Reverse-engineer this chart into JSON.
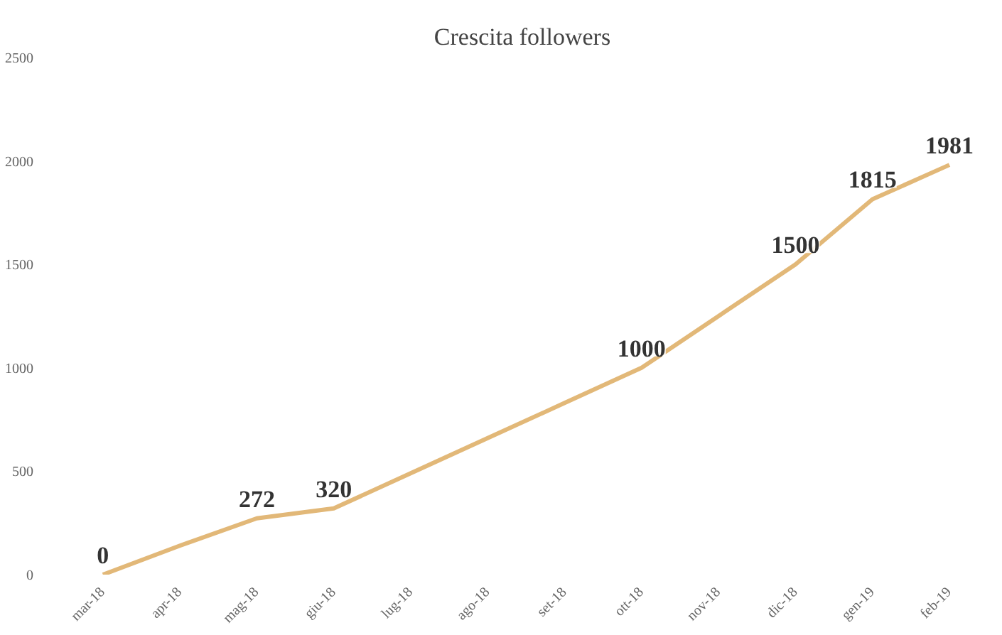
{
  "chart_data": {
    "type": "line",
    "title": "Crescita followers",
    "categories": [
      "mar-18",
      "apr-18",
      "mag-18",
      "giu-18",
      "lug-18",
      "ago-18",
      "set-18",
      "ott-18",
      "nov-18",
      "dic-18",
      "gen-19",
      "feb-19"
    ],
    "series": [
      {
        "color": "#e2b878",
        "values": [
          0,
          140,
          272,
          320,
          490,
          660,
          830,
          1000,
          1250,
          1500,
          1815,
          1981
        ],
        "value_labels": [
          "0",
          null,
          "272",
          "320",
          null,
          null,
          null,
          "1000",
          null,
          "1500",
          "1815",
          "1981"
        ]
      }
    ],
    "ylim": [
      0,
      2500
    ],
    "yticks": [
      0,
      500,
      1000,
      1500,
      2000,
      2500
    ],
    "grid": false,
    "marker": "none",
    "line_style": "solid"
  }
}
